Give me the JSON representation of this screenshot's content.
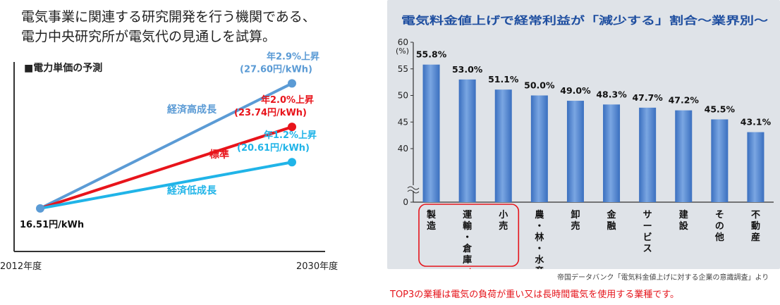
{
  "intro_lines": [
    "電気事業に関連する研究開発を行う機関である、",
    "電力中央研究所が電気代の見通しを試算。"
  ],
  "chart_data": [
    {
      "type": "line",
      "title": "■電力単価の予測",
      "x": [
        "2012年度",
        "2030年度"
      ],
      "start_label": "16.51円/kWh",
      "series": [
        {
          "name": "経済高成長",
          "values": [
            16.51,
            27.6
          ],
          "color": "#5b9bd5",
          "rate_label": "年2.9%上昇",
          "value_label": "(27.60円/kWh)"
        },
        {
          "name": "標準",
          "values": [
            16.51,
            23.74
          ],
          "color": "#e8141b",
          "rate_label": "年2.0%上昇",
          "value_label": "(23.74円/kWh)"
        },
        {
          "name": "経済低成長",
          "values": [
            16.51,
            20.61
          ],
          "color": "#20b4e8",
          "rate_label": "年1.2%上昇",
          "value_label": "(20.61円/kWh)"
        }
      ],
      "ylim": [
        13,
        30
      ]
    },
    {
      "type": "bar",
      "title": "電気料金値上げで経常利益が「減少する」割合～業界別～",
      "ylabel": "(%)",
      "ylim": [
        0,
        60
      ],
      "yticks": [
        0,
        40,
        45,
        50,
        55,
        60
      ],
      "axis_break": true,
      "categories": [
        "製造",
        "運輸・倉庫",
        "小売",
        "農・林・水産",
        "卸売",
        "金融",
        "サービス",
        "建設",
        "その他",
        "不動産"
      ],
      "values": [
        55.8,
        53.0,
        51.1,
        50.0,
        49.0,
        48.3,
        47.7,
        47.2,
        45.5,
        43.1
      ],
      "value_labels": [
        "55.8%",
        "53.0%",
        "51.1%",
        "50.0%",
        "49.0%",
        "48.3%",
        "47.7%",
        "47.2%",
        "45.5%",
        "43.1%"
      ],
      "highlight_top": 3,
      "colors": {
        "bar": "#3a6fbf",
        "bar_light": "#7aa6e2",
        "panel": "#dfe3e8",
        "title": "#1f4fa0",
        "highlight": "#e5141b"
      }
    }
  ],
  "source": "帝国データバンク「電気料金値上げに対する企業の意識調査」より",
  "note": "TOP3の業種は電気の負荷が重い又は長時間電気を使用する業種です。"
}
